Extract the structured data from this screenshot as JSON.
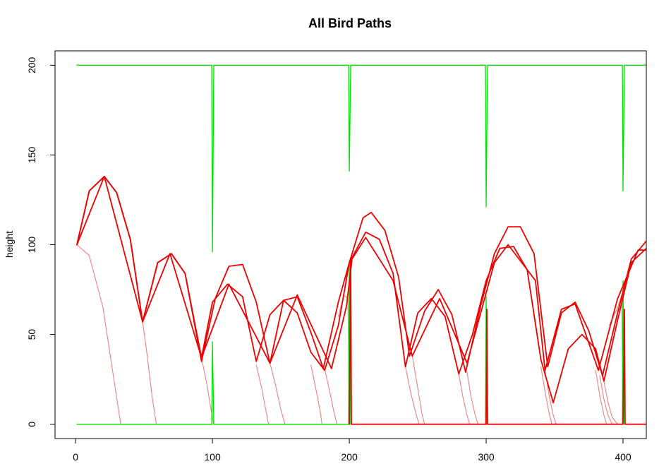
{
  "chart_data": {
    "type": "line",
    "title": "All Bird Paths",
    "xlabel": "",
    "ylabel": "height",
    "xlim": [
      -15,
      417
    ],
    "ylim": [
      -8,
      208
    ],
    "x_ticks": [
      0,
      100,
      200,
      300,
      400
    ],
    "y_ticks": [
      0,
      50,
      100,
      150,
      200
    ],
    "grid": false,
    "legend": "none",
    "colors": {
      "pipes": "#00e000",
      "best_birds": "#ee0000",
      "dead_birds": "#f08080",
      "axis": "#000000"
    },
    "series": [
      {
        "group": "pipes",
        "x": [
          1,
          99.5,
          100,
          101,
          101.5,
          199.5,
          200,
          201,
          201.5,
          299.5,
          300,
          301,
          301.5,
          399.5,
          400,
          401,
          401.5,
          417
        ],
        "y": [
          200,
          200,
          96,
          200,
          200,
          200,
          141,
          200,
          200,
          200,
          121,
          200,
          200,
          200,
          130,
          200,
          200,
          200
        ]
      },
      {
        "group": "pipes",
        "x": [
          1,
          99.5,
          100,
          101,
          101.5,
          199.5,
          200,
          201,
          201.5,
          299.5,
          300,
          301,
          301.5,
          399.5,
          400,
          401,
          401.5,
          417
        ],
        "y": [
          0,
          0,
          46,
          0,
          0,
          0,
          91,
          0,
          0,
          0,
          71,
          0,
          0,
          0,
          80,
          0,
          0,
          0
        ]
      },
      {
        "group": "best_birds",
        "x": [
          1,
          10,
          21,
          30,
          40,
          49,
          60,
          70,
          80,
          92,
          102,
          112,
          122,
          132,
          142,
          152,
          162,
          172,
          181,
          192,
          200,
          210,
          216,
          226,
          236,
          244,
          255,
          265,
          275,
          285,
          296,
          306,
          316,
          325,
          335,
          345,
          355,
          365,
          375,
          385,
          396,
          406,
          417
        ],
        "y": [
          100,
          130,
          138,
          129,
          103,
          57,
          90,
          95,
          84,
          35,
          70,
          88,
          89,
          68,
          34,
          69,
          71,
          51,
          31,
          68,
          90,
          115,
          118,
          108,
          82,
          38,
          63,
          75,
          61,
          29,
          66,
          95,
          110,
          110,
          95,
          32,
          62,
          68,
          52,
          27,
          62,
          92,
          102
        ]
      },
      {
        "group": "best_birds",
        "x": [
          1,
          10,
          21,
          30,
          40,
          49,
          60,
          70,
          80,
          92,
          100,
          111,
          122,
          132,
          142,
          152,
          162,
          172,
          182,
          192,
          200,
          212,
          222,
          232,
          241,
          250,
          260,
          270,
          280,
          290,
          300,
          310,
          320,
          330,
          340,
          349,
          360,
          370,
          380,
          386,
          396,
          406,
          417
        ],
        "y": [
          100,
          130,
          138,
          129,
          103,
          57,
          90,
          95,
          84,
          37,
          68,
          78,
          71,
          35,
          61,
          69,
          62,
          40,
          30,
          55,
          90,
          107,
          103,
          84,
          32,
          62,
          70,
          60,
          28,
          50,
          80,
          98,
          99,
          86,
          36,
          12,
          42,
          50,
          42,
          24,
          58,
          90,
          98
        ]
      },
      {
        "group": "best_birds",
        "x": [
          1,
          21,
          49,
          69,
          92,
          112,
          142,
          162,
          187,
          198,
          202,
          212,
          232,
          246,
          266,
          286,
          306,
          316,
          336,
          343,
          355,
          365,
          382,
          396,
          411,
          417
        ],
        "y": [
          100,
          138,
          57,
          95,
          37,
          78,
          34,
          72,
          31,
          66,
          92,
          104,
          80,
          38,
          70,
          34,
          90,
          100,
          80,
          30,
          64,
          67,
          30,
          70,
          97,
          97
        ]
      },
      {
        "group": "best_birds",
        "x": [
          200,
          201,
          201.5,
          202,
          300,
          300.5,
          301,
          301.5,
          400,
          401,
          401.5,
          417
        ],
        "y": [
          0,
          92,
          0,
          0,
          0,
          64,
          0,
          0,
          0,
          64,
          0,
          0
        ]
      },
      {
        "group": "dead_birds",
        "x": [
          1,
          10,
          20,
          28,
          33,
          49
        ],
        "y": [
          100,
          94,
          65,
          25,
          0,
          0
        ]
      },
      {
        "group": "dead_birds",
        "x": [
          49,
          52,
          56,
          59,
          100
        ],
        "y": [
          57,
          40,
          15,
          0,
          0
        ]
      },
      {
        "group": "dead_birds",
        "x": [
          92,
          96,
          99,
          101,
          200
        ],
        "y": [
          37,
          22,
          8,
          0,
          0
        ]
      },
      {
        "group": "dead_birds",
        "x": [
          132,
          136,
          139,
          141,
          200
        ],
        "y": [
          33,
          20,
          8,
          0,
          0
        ]
      },
      {
        "group": "dead_birds",
        "x": [
          142,
          146,
          150,
          153,
          200
        ],
        "y": [
          34,
          22,
          8,
          0,
          0
        ]
      },
      {
        "group": "dead_birds",
        "x": [
          172,
          176,
          179,
          180,
          200
        ],
        "y": [
          33,
          18,
          6,
          0,
          0
        ]
      },
      {
        "group": "dead_birds",
        "x": [
          182,
          186,
          189,
          191,
          200
        ],
        "y": [
          31,
          17,
          6,
          0,
          0
        ]
      },
      {
        "group": "dead_birds",
        "x": [
          192,
          196,
          199,
          200
        ],
        "y": [
          60,
          72,
          70,
          0
        ]
      },
      {
        "group": "dead_birds",
        "x": [
          241,
          245,
          249,
          251,
          300
        ],
        "y": [
          32,
          17,
          5,
          0,
          0
        ]
      },
      {
        "group": "dead_birds",
        "x": [
          246,
          250,
          253,
          255,
          300
        ],
        "y": [
          38,
          20,
          6,
          0,
          0
        ]
      },
      {
        "group": "dead_birds",
        "x": [
          280,
          283,
          286,
          288,
          300
        ],
        "y": [
          28,
          15,
          5,
          0,
          0
        ]
      },
      {
        "group": "dead_birds",
        "x": [
          286,
          289,
          292,
          294,
          300
        ],
        "y": [
          29,
          15,
          5,
          0,
          0
        ]
      },
      {
        "group": "dead_birds",
        "x": [
          340,
          343,
          346,
          348,
          400
        ],
        "y": [
          32,
          18,
          6,
          0,
          0
        ]
      },
      {
        "group": "dead_birds",
        "x": [
          343,
          346,
          349,
          351,
          400
        ],
        "y": [
          30,
          16,
          5,
          0,
          0
        ]
      },
      {
        "group": "dead_birds",
        "x": [
          380,
          383,
          386,
          388,
          400
        ],
        "y": [
          30,
          16,
          5,
          0,
          0
        ]
      },
      {
        "group": "dead_birds",
        "x": [
          383,
          386,
          389,
          392,
          400
        ],
        "y": [
          27,
          14,
          5,
          0,
          0
        ]
      },
      {
        "group": "dead_birds",
        "x": [
          386,
          389,
          392,
          396,
          400
        ],
        "y": [
          24,
          12,
          4,
          0,
          0
        ]
      },
      {
        "group": "dead_birds",
        "x": [
          390,
          396,
          399,
          400
        ],
        "y": [
          55,
          65,
          72,
          0
        ]
      }
    ]
  }
}
